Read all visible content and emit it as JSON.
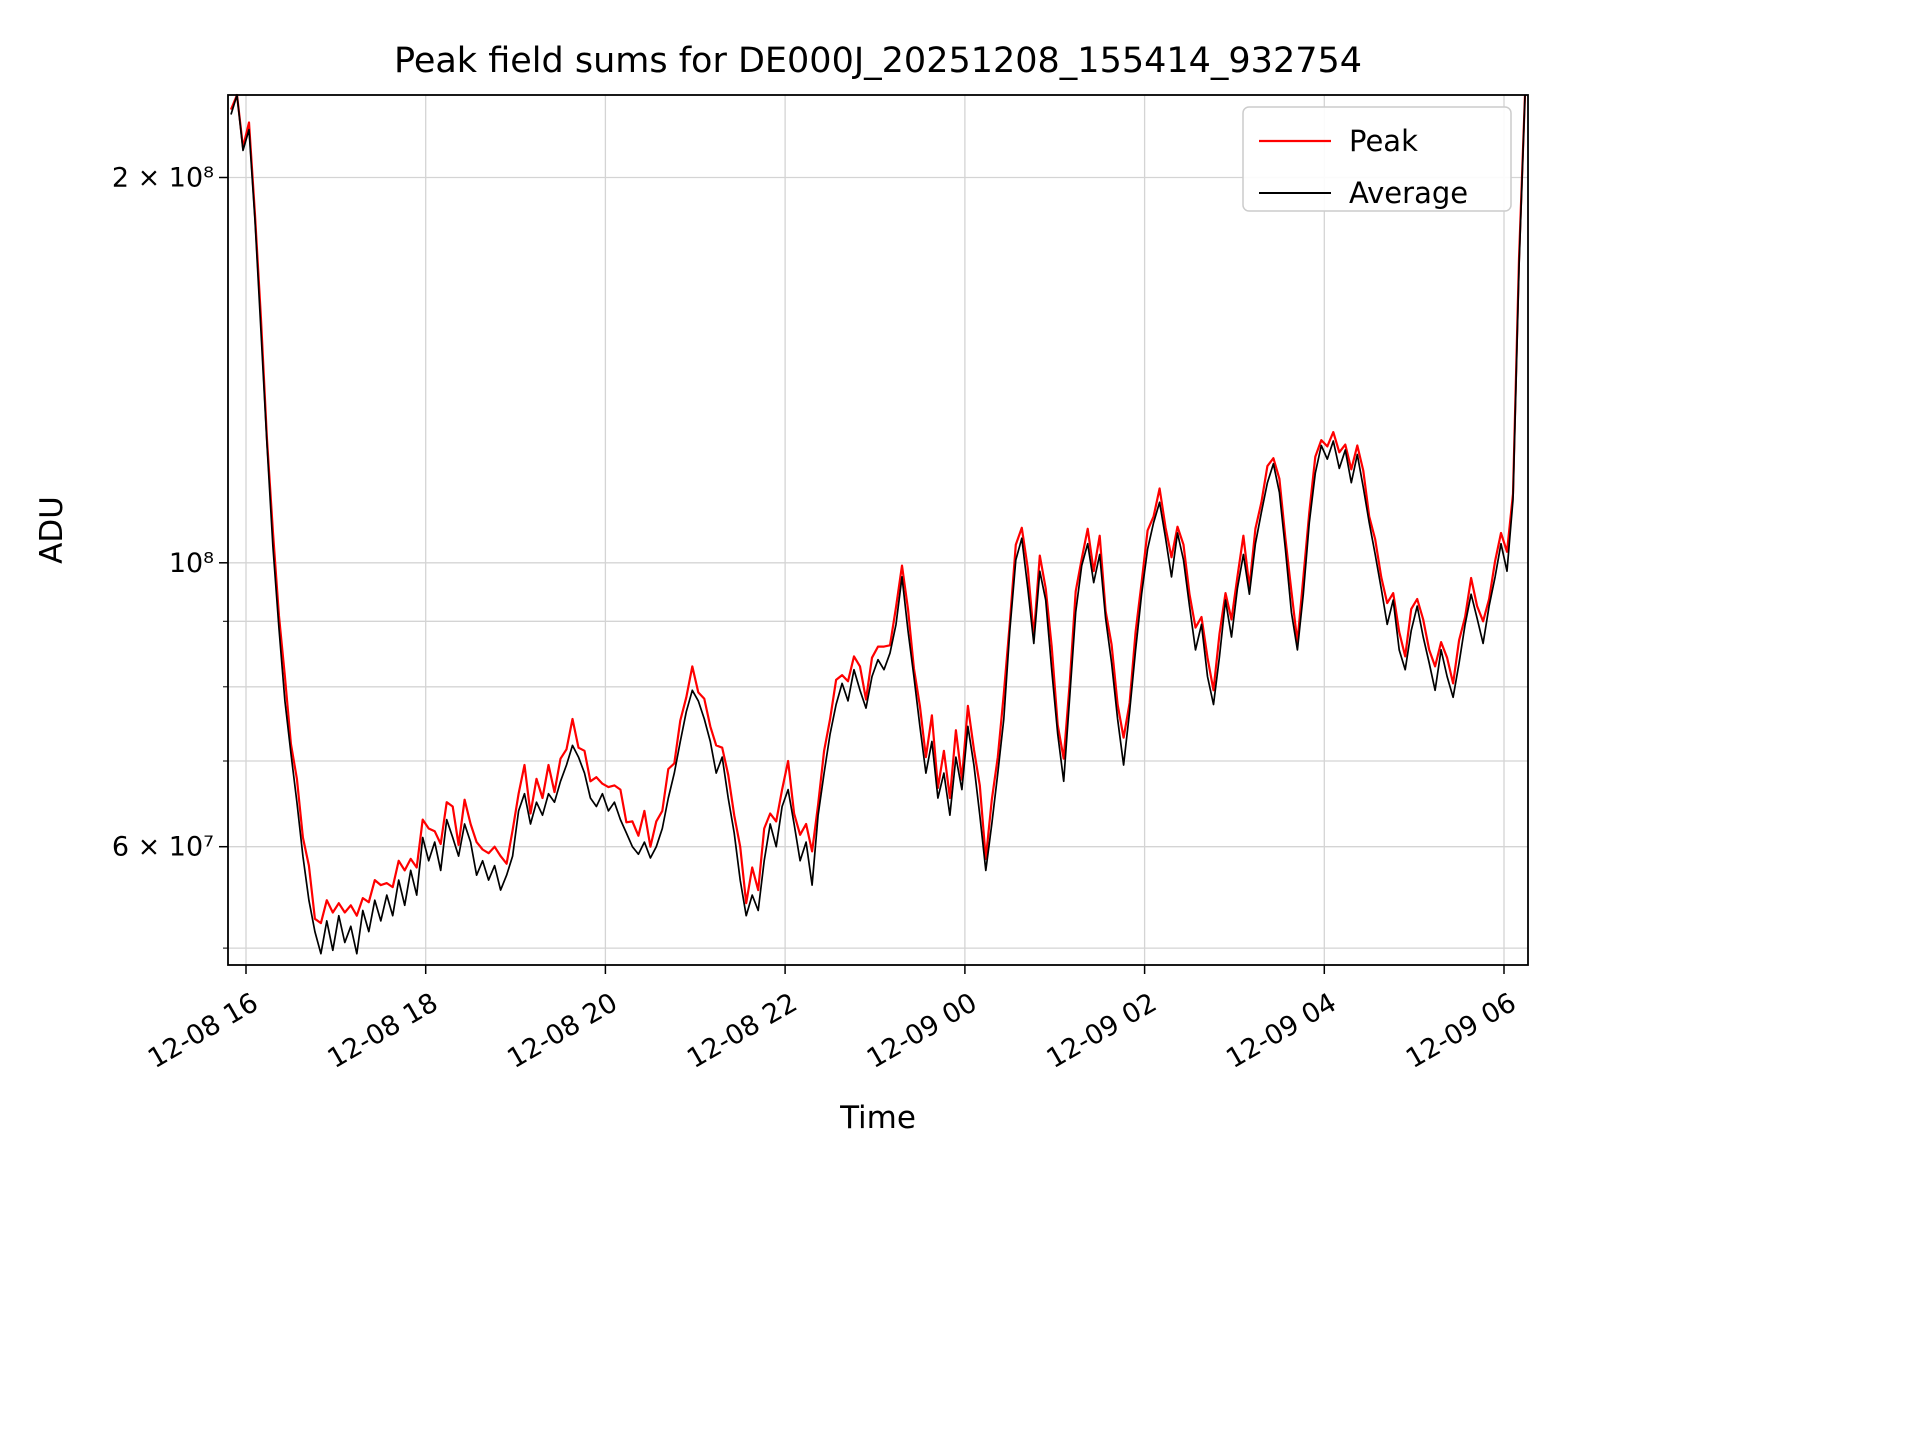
{
  "chart_data": {
    "type": "line",
    "title": "Peak field sums for DE000J_20251208_155414_932754",
    "xlabel": "Time",
    "ylabel": "ADU",
    "yscale": "log",
    "ylim": [
      48500000,
      232000000
    ],
    "value_scale": 10000000,
    "value_unit": "ADU",
    "grid": "both-major-and-minor",
    "grid_color": "#d4d4d4",
    "x_origin": "12-08 15:48",
    "x_domain_minutes": [
      0,
      868
    ],
    "x": {
      "start_minute": 2,
      "step_minutes": 4,
      "count": 217
    },
    "x_ticks": [
      {
        "minute": 12,
        "label": "12-08 16"
      },
      {
        "minute": 132,
        "label": "12-08 18"
      },
      {
        "minute": 252,
        "label": "12-08 20"
      },
      {
        "minute": 372,
        "label": "12-08 22"
      },
      {
        "minute": 492,
        "label": "12-09 00"
      },
      {
        "minute": 612,
        "label": "12-09 02"
      },
      {
        "minute": 732,
        "label": "12-09 04"
      },
      {
        "minute": 852,
        "label": "12-09 06"
      }
    ],
    "y_ticks": [
      {
        "value": 60000000,
        "label": "6 × 10⁷"
      },
      {
        "value": 100000000,
        "label": "10⁸"
      },
      {
        "value": 200000000,
        "label": "2 × 10⁸"
      }
    ],
    "y_minor_gridlines": [
      50000000,
      70000000,
      80000000,
      90000000
    ],
    "legend": {
      "position": "upper right",
      "entries": [
        {
          "label": "Peak",
          "color": "#ff0000"
        },
        {
          "label": "Average",
          "color": "#000000"
        }
      ]
    },
    "series": [
      {
        "name": "Peak",
        "color": "#ff0000",
        "values_e7": [
          22.6,
          23.55,
          21.12,
          22.08,
          18.7,
          15.55,
          12.52,
          10.58,
          9.1,
          8.15,
          7.22,
          6.78,
          6.1,
          5.8,
          5.27,
          5.23,
          5.45,
          5.33,
          5.42,
          5.33,
          5.4,
          5.3,
          5.47,
          5.43,
          5.65,
          5.6,
          5.62,
          5.58,
          5.85,
          5.75,
          5.87,
          5.78,
          6.3,
          6.2,
          6.17,
          6.03,
          6.5,
          6.45,
          6.02,
          6.53,
          6.25,
          6.05,
          5.97,
          5.93,
          6.0,
          5.9,
          5.82,
          6.18,
          6.6,
          6.95,
          6.37,
          6.78,
          6.55,
          6.95,
          6.62,
          7.03,
          7.15,
          7.55,
          7.17,
          7.13,
          6.75,
          6.8,
          6.72,
          6.68,
          6.7,
          6.65,
          6.27,
          6.28,
          6.12,
          6.4,
          6.0,
          6.28,
          6.4,
          6.9,
          6.97,
          7.53,
          7.85,
          8.3,
          7.92,
          7.83,
          7.45,
          7.2,
          7.17,
          6.83,
          6.35,
          6.0,
          5.42,
          5.78,
          5.55,
          6.2,
          6.37,
          6.28,
          6.65,
          7.0,
          6.37,
          6.13,
          6.25,
          5.95,
          6.47,
          7.13,
          7.55,
          8.1,
          8.17,
          8.08,
          8.45,
          8.3,
          7.82,
          8.43,
          8.6,
          8.6,
          8.62,
          9.23,
          9.95,
          9.2,
          8.27,
          7.73,
          7.05,
          7.6,
          6.67,
          7.13,
          6.55,
          7.4,
          6.77,
          7.73,
          7.15,
          6.7,
          5.87,
          6.53,
          7.05,
          7.9,
          8.97,
          10.33,
          10.65,
          9.9,
          8.77,
          10.13,
          9.55,
          8.6,
          7.47,
          7.03,
          8.05,
          9.5,
          10.07,
          10.63,
          9.85,
          10.5,
          9.17,
          8.63,
          7.75,
          7.3,
          7.77,
          8.83,
          9.65,
          10.6,
          10.87,
          11.43,
          10.65,
          10.1,
          10.67,
          10.33,
          9.45,
          8.9,
          9.07,
          8.43,
          7.95,
          8.8,
          9.47,
          9.03,
          9.75,
          10.5,
          9.57,
          10.63,
          11.15,
          11.9,
          12.07,
          11.63,
          10.45,
          9.5,
          8.67,
          9.73,
          10.95,
          12.1,
          12.47,
          12.33,
          12.65,
          12.2,
          12.37,
          11.83,
          12.35,
          11.8,
          10.87,
          10.43,
          9.75,
          9.3,
          9.47,
          8.83,
          8.45,
          9.2,
          9.37,
          9.03,
          8.55,
          8.3,
          8.67,
          8.43,
          8.05,
          8.7,
          9.07,
          9.73,
          9.25,
          9.0,
          9.37,
          10.03,
          10.55,
          10.2,
          11.32,
          17.28,
          23.4
        ]
      },
      {
        "name": "Average",
        "color": "#000000",
        "values_e7": [
          22.4,
          23.2,
          21.0,
          21.8,
          18.5,
          15.2,
          12.4,
          10.3,
          8.9,
          7.8,
          7.1,
          6.5,
          5.9,
          5.45,
          5.15,
          4.95,
          5.25,
          4.98,
          5.3,
          5.05,
          5.2,
          4.95,
          5.35,
          5.15,
          5.45,
          5.25,
          5.5,
          5.3,
          5.65,
          5.4,
          5.75,
          5.5,
          6.1,
          5.85,
          6.05,
          5.75,
          6.3,
          6.1,
          5.9,
          6.25,
          6.05,
          5.7,
          5.85,
          5.65,
          5.8,
          5.55,
          5.7,
          5.9,
          6.4,
          6.6,
          6.25,
          6.5,
          6.35,
          6.6,
          6.5,
          6.75,
          6.95,
          7.2,
          7.05,
          6.85,
          6.55,
          6.45,
          6.6,
          6.4,
          6.5,
          6.3,
          6.15,
          6.0,
          5.92,
          6.05,
          5.88,
          6.0,
          6.2,
          6.55,
          6.85,
          7.25,
          7.65,
          7.95,
          7.8,
          7.55,
          7.25,
          6.85,
          7.05,
          6.55,
          6.15,
          5.65,
          5.3,
          5.5,
          5.35,
          5.85,
          6.25,
          6.0,
          6.45,
          6.65,
          6.25,
          5.85,
          6.05,
          5.6,
          6.35,
          6.85,
          7.35,
          7.75,
          8.05,
          7.8,
          8.25,
          7.95,
          7.7,
          8.15,
          8.4,
          8.25,
          8.5,
          8.95,
          9.75,
          8.85,
          8.15,
          7.45,
          6.85,
          7.25,
          6.55,
          6.85,
          6.35,
          7.05,
          6.65,
          7.45,
          6.95,
          6.35,
          5.75,
          6.25,
          6.85,
          7.55,
          8.85,
          10.05,
          10.45,
          9.55,
          8.65,
          9.85,
          9.35,
          8.25,
          7.35,
          6.75,
          7.85,
          9.15,
          9.95,
          10.35,
          9.65,
          10.15,
          9.05,
          8.35,
          7.55,
          6.95,
          7.65,
          8.55,
          9.45,
          10.25,
          10.75,
          11.15,
          10.45,
          9.75,
          10.55,
          10.05,
          9.25,
          8.55,
          8.95,
          8.15,
          7.75,
          8.45,
          9.35,
          8.75,
          9.55,
          10.15,
          9.45,
          10.35,
          10.95,
          11.55,
          11.95,
          11.35,
          10.25,
          9.15,
          8.55,
          9.45,
          10.75,
          11.75,
          12.35,
          12.05,
          12.45,
          11.85,
          12.25,
          11.55,
          12.15,
          11.45,
          10.75,
          10.15,
          9.55,
          8.95,
          9.35,
          8.55,
          8.25,
          8.85,
          9.25,
          8.75,
          8.35,
          7.95,
          8.55,
          8.15,
          7.85,
          8.35,
          8.95,
          9.45,
          9.05,
          8.65,
          9.25,
          9.75,
          10.35,
          9.85,
          11.2,
          17.0,
          23.2
        ]
      }
    ]
  }
}
